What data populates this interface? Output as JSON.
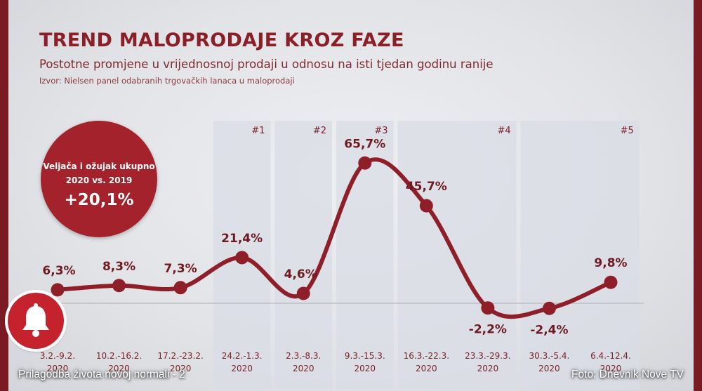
{
  "chart_data": {
    "type": "line",
    "title": "TREND MALOPRODAJE KROZ FAZE",
    "subtitle": "Postotne promjene u vrijednosnoj prodaji u odnosu na isti tjedan godinu ranije",
    "source": "Izvor: Nielsen panel odabranih trgovačkih lanaca u maloprodaji",
    "categories": [
      [
        "3.2.-9.2.",
        "2020"
      ],
      [
        "10.2.-16.2.",
        "2020"
      ],
      [
        "17.2.-23.2.",
        "2020"
      ],
      [
        "24.2.-1.3.",
        "2020"
      ],
      [
        "2.3.-8.3.",
        "2020"
      ],
      [
        "9.3.-15.3.",
        "2020"
      ],
      [
        "16.3.-22.3.",
        "2020"
      ],
      [
        "23.3.-29.3.",
        "2020"
      ],
      [
        "30.3.-5.4.",
        "2020"
      ],
      [
        "6.4.-12.4.",
        "2020"
      ]
    ],
    "values": [
      6.3,
      8.3,
      7.3,
      21.4,
      4.6,
      65.7,
      45.7,
      -2.2,
      -2.4,
      9.8
    ],
    "value_labels": [
      "6,3%",
      "8,3%",
      "7,3%",
      "21,4%",
      "4,6%",
      "65,7%",
      "45,7%",
      "-2,2%",
      "-2,4%",
      "9,8%"
    ],
    "phases": [
      {
        "label": "#1",
        "from": 3,
        "to": 3
      },
      {
        "label": "#2",
        "from": 4,
        "to": 4
      },
      {
        "label": "#3",
        "from": 5,
        "to": 5
      },
      {
        "label": "#4",
        "from": 6,
        "to": 7
      },
      {
        "label": "#5",
        "from": 8,
        "to": 9
      }
    ],
    "baseline": 0,
    "ylim": [
      -8,
      70
    ],
    "grid": false,
    "colors": {
      "line": "#8e1f28",
      "phase_band": "#d9dce6",
      "label": "#7a1f26"
    }
  },
  "badge": {
    "line1": "Veljača i ožujak ukupno",
    "line2": "2020 vs. 2019",
    "value": "+20,1%"
  },
  "bell_icon": "bell-icon",
  "caption": {
    "left": "Prilagodba života novoj normali - 2",
    "right": "Foto: Dnevnik Nove TV"
  }
}
